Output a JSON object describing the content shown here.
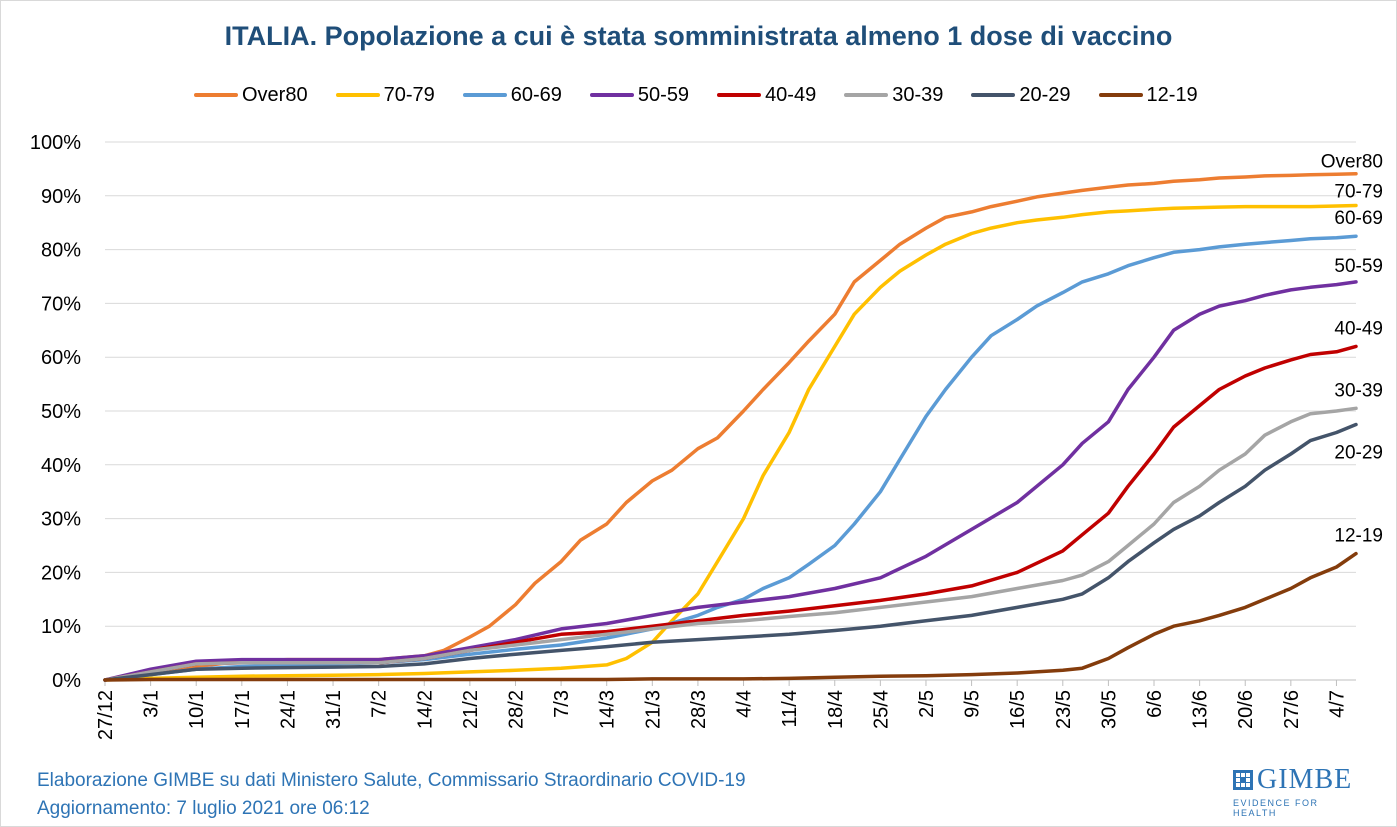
{
  "title": "ITALIA. Popolazione a cui è stata somministrata almeno 1 dose di vaccino",
  "footer": {
    "line1": "Elaborazione GIMBE su dati Ministero Salute, Commissario Straordinario COVID-19",
    "line2": "Aggiornamento: 7 luglio 2021 ore 06:12"
  },
  "logo": {
    "name": "GIMBE",
    "tagline": "EVIDENCE FOR HEALTH"
  },
  "chart_data": {
    "type": "line",
    "title": "ITALIA. Popolazione a cui è stata somministrata almeno 1 dose di vaccino",
    "xlabel": "",
    "ylabel": "",
    "x_ticks": [
      "27/12",
      "3/1",
      "10/1",
      "17/1",
      "24/1",
      "31/1",
      "7/2",
      "14/2",
      "21/2",
      "28/2",
      "7/3",
      "14/3",
      "21/3",
      "28/3",
      "4/4",
      "11/4",
      "18/4",
      "25/4",
      "2/5",
      "9/5",
      "16/5",
      "23/5",
      "30/5",
      "6/6",
      "13/6",
      "20/6",
      "27/6",
      "4/7"
    ],
    "x_day_range": [
      0,
      192
    ],
    "y_ticks": [
      "0%",
      "10%",
      "20%",
      "30%",
      "40%",
      "50%",
      "60%",
      "70%",
      "80%",
      "90%",
      "100%"
    ],
    "ylim": [
      0,
      100
    ],
    "y_unit": "%",
    "grid": "horizontal",
    "legend_position": "top",
    "series": [
      {
        "name": "Over80",
        "color": "#ED7D31",
        "x": [
          0,
          7,
          14,
          21,
          28,
          35,
          42,
          49,
          52,
          56,
          59,
          63,
          66,
          70,
          73,
          77,
          80,
          84,
          87,
          91,
          94,
          98,
          101,
          105,
          108,
          112,
          115,
          119,
          122,
          126,
          129,
          133,
          136,
          140,
          143,
          147,
          150,
          154,
          157,
          161,
          164,
          168,
          171,
          175,
          178,
          182,
          185,
          189,
          192
        ],
        "y": [
          0,
          1,
          2.5,
          3.5,
          3.8,
          3.8,
          3.8,
          4.5,
          5.5,
          8,
          10,
          14,
          18,
          22,
          26,
          29,
          33,
          37,
          39,
          43,
          45,
          50,
          54,
          59,
          63,
          68,
          74,
          78,
          81,
          84,
          86,
          87,
          88,
          89,
          89.8,
          90.5,
          91,
          91.6,
          92,
          92.3,
          92.7,
          93,
          93.3,
          93.5,
          93.7,
          93.8,
          93.9,
          94,
          94.1
        ]
      },
      {
        "name": "70-79",
        "color": "#FFC000",
        "x": [
          0,
          7,
          14,
          21,
          28,
          35,
          42,
          49,
          56,
          63,
          70,
          77,
          80,
          84,
          87,
          91,
          94,
          98,
          101,
          105,
          108,
          112,
          115,
          119,
          122,
          126,
          129,
          133,
          136,
          140,
          143,
          147,
          150,
          154,
          157,
          161,
          164,
          168,
          171,
          175,
          178,
          182,
          185,
          189,
          192
        ],
        "y": [
          0,
          0.3,
          0.5,
          0.7,
          0.8,
          0.9,
          1,
          1.2,
          1.5,
          1.8,
          2.2,
          2.8,
          4,
          7,
          11,
          16,
          22,
          30,
          38,
          46,
          54,
          62,
          68,
          73,
          76,
          79,
          81,
          83,
          84,
          85,
          85.5,
          86,
          86.5,
          87,
          87.2,
          87.5,
          87.7,
          87.8,
          87.9,
          88,
          88,
          88,
          88,
          88.1,
          88.2
        ]
      },
      {
        "name": "60-69",
        "color": "#5B9BD5",
        "x": [
          0,
          7,
          14,
          21,
          28,
          35,
          42,
          49,
          56,
          63,
          70,
          77,
          84,
          91,
          94,
          98,
          101,
          105,
          108,
          112,
          115,
          119,
          122,
          126,
          129,
          133,
          136,
          140,
          143,
          147,
          150,
          154,
          157,
          161,
          164,
          168,
          171,
          175,
          178,
          182,
          185,
          189,
          192
        ],
        "y": [
          0,
          1,
          2,
          2.5,
          2.7,
          3,
          3.2,
          3.8,
          4.8,
          5.7,
          6.5,
          7.8,
          9.5,
          12,
          13.5,
          15,
          17,
          19,
          21.5,
          25,
          29,
          35,
          41,
          49,
          54,
          60,
          64,
          67,
          69.5,
          72,
          74,
          75.5,
          77,
          78.5,
          79.5,
          80,
          80.5,
          81,
          81.3,
          81.7,
          82,
          82.2,
          82.5
        ]
      },
      {
        "name": "50-59",
        "color": "#7030A0",
        "x": [
          0,
          7,
          14,
          21,
          28,
          35,
          42,
          49,
          56,
          63,
          70,
          77,
          84,
          91,
          98,
          105,
          112,
          119,
          126,
          133,
          140,
          147,
          150,
          154,
          157,
          161,
          164,
          168,
          171,
          175,
          178,
          182,
          185,
          189,
          192
        ],
        "y": [
          0,
          2,
          3.5,
          3.8,
          3.8,
          3.8,
          3.8,
          4.5,
          6,
          7.5,
          9.5,
          10.5,
          12,
          13.5,
          14.5,
          15.5,
          17,
          19,
          23,
          28,
          33,
          40,
          44,
          48,
          54,
          60,
          65,
          68,
          69.5,
          70.5,
          71.5,
          72.5,
          73,
          73.5,
          74
        ]
      },
      {
        "name": "40-49",
        "color": "#C00000",
        "x": [
          0,
          7,
          14,
          21,
          28,
          35,
          42,
          49,
          56,
          63,
          70,
          77,
          84,
          91,
          98,
          105,
          112,
          119,
          126,
          133,
          140,
          147,
          150,
          154,
          157,
          161,
          164,
          168,
          171,
          175,
          178,
          182,
          185,
          189,
          192
        ],
        "y": [
          0,
          1.5,
          3,
          3.2,
          3.2,
          3.2,
          3.2,
          4,
          5.5,
          7,
          8.5,
          9,
          10,
          11,
          12,
          12.8,
          13.8,
          14.8,
          16,
          17.5,
          20,
          24,
          27,
          31,
          36,
          42,
          47,
          51,
          54,
          56.5,
          58,
          59.5,
          60.5,
          61,
          62
        ]
      },
      {
        "name": "30-39",
        "color": "#A5A5A5",
        "x": [
          0,
          7,
          14,
          21,
          28,
          35,
          42,
          49,
          56,
          63,
          70,
          77,
          84,
          91,
          98,
          105,
          112,
          119,
          126,
          133,
          140,
          147,
          150,
          154,
          157,
          161,
          164,
          168,
          171,
          175,
          178,
          182,
          185,
          189,
          192
        ],
        "y": [
          0,
          1.5,
          3,
          3.2,
          3.2,
          3.2,
          3.2,
          4,
          5.5,
          6.5,
          7.5,
          8.5,
          9.5,
          10.5,
          11,
          11.8,
          12.5,
          13.5,
          14.5,
          15.5,
          17,
          18.5,
          19.5,
          22,
          25,
          29,
          33,
          36,
          39,
          42,
          45.5,
          48,
          49.5,
          50,
          50.5
        ]
      },
      {
        "name": "20-29",
        "color": "#44546A",
        "x": [
          0,
          7,
          14,
          21,
          28,
          35,
          42,
          49,
          56,
          63,
          70,
          77,
          84,
          91,
          98,
          105,
          112,
          119,
          126,
          133,
          140,
          147,
          150,
          154,
          157,
          161,
          164,
          168,
          171,
          175,
          178,
          182,
          185,
          189,
          192
        ],
        "y": [
          0,
          1,
          2,
          2.2,
          2.3,
          2.4,
          2.5,
          3,
          4,
          4.8,
          5.5,
          6.2,
          7,
          7.5,
          8,
          8.5,
          9.2,
          10,
          11,
          12,
          13.5,
          15,
          16,
          19,
          22,
          25.5,
          28,
          30.5,
          33,
          36,
          39,
          42,
          44.5,
          46,
          47.5
        ]
      },
      {
        "name": "12-19",
        "color": "#843C0C",
        "x": [
          0,
          7,
          14,
          21,
          28,
          35,
          42,
          49,
          56,
          63,
          70,
          77,
          84,
          91,
          98,
          105,
          112,
          119,
          126,
          133,
          140,
          147,
          150,
          154,
          157,
          161,
          164,
          168,
          171,
          175,
          178,
          182,
          185,
          189,
          192
        ],
        "y": [
          0,
          0.1,
          0.1,
          0.1,
          0.1,
          0.1,
          0.1,
          0.1,
          0.1,
          0.1,
          0.1,
          0.1,
          0.2,
          0.2,
          0.2,
          0.3,
          0.5,
          0.7,
          0.8,
          1,
          1.3,
          1.8,
          2.2,
          4,
          6,
          8.5,
          10,
          11,
          12,
          13.5,
          15,
          17,
          19,
          21,
          23.5
        ]
      }
    ],
    "end_labels": [
      "Over80",
      "70-79",
      "60-69",
      "50-59",
      "40-49",
      "30-39",
      "20-29",
      "12-19"
    ]
  }
}
